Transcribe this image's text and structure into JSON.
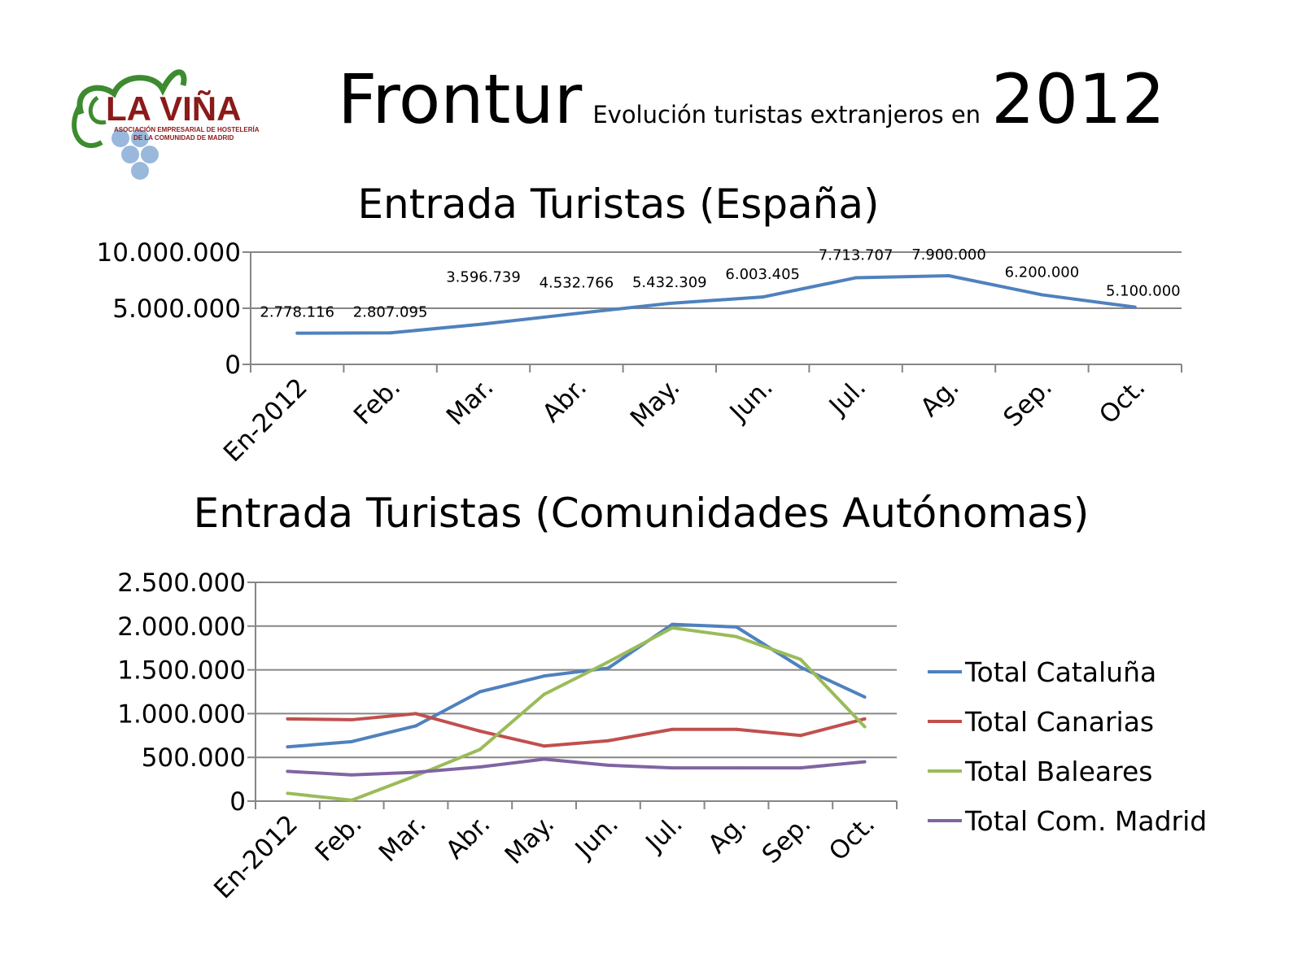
{
  "header": {
    "main": "Frontur",
    "sub": "Evolución turistas extranjeros en",
    "year": "2012"
  },
  "logo": {
    "name": "LA VIÑA",
    "line1": "ASOCIACIÓN EMPRESARIAL DE HOSTELERÍA",
    "line2": "DE LA COMUNIDAD DE MADRID",
    "icon": "grape-vine-icon",
    "colors": {
      "text": "#8b1a1a",
      "leaf": "#3d8b2f",
      "grapes": "#9ab8dc"
    }
  },
  "chart_data": [
    {
      "type": "line",
      "title": "Entrada Turistas (España)",
      "categories": [
        "En-2012",
        "Feb.",
        "Mar.",
        "Abr.",
        "May.",
        "Jun.",
        "Jul.",
        "Ag.",
        "Sep.",
        "Oct."
      ],
      "series": [
        {
          "values": [
            2778116,
            2807095,
            3596739,
            4532766,
            5432309,
            6003405,
            7713707,
            7900000,
            6200000,
            5100000
          ],
          "color": "#4f81bd"
        }
      ],
      "data_labels": [
        "2.778.116",
        "2.807.095",
        "3.596.739",
        "4.532.766",
        "5.432.309",
        "6.003.405",
        "7.713.707",
        "7.900.000",
        "6.200.000",
        "5.100.000"
      ],
      "ylim": [
        0,
        10000000
      ],
      "yticks": [
        0,
        5000000,
        10000000
      ],
      "ytick_labels": [
        "0",
        "5.000.000",
        "10.000.000"
      ],
      "grid": true,
      "legend": "none"
    },
    {
      "type": "line",
      "title": "Entrada Turistas (Comunidades Autónomas)",
      "categories": [
        "En-2012",
        "Feb.",
        "Mar.",
        "Abr.",
        "May.",
        "Jun.",
        "Jul.",
        "Ag.",
        "Sep.",
        "Oct."
      ],
      "series": [
        {
          "name": "Total Cataluña",
          "color": "#4f81bd",
          "values": [
            620000,
            680000,
            860000,
            1250000,
            1430000,
            1520000,
            2020000,
            1990000,
            1530000,
            1190000
          ]
        },
        {
          "name": "Total Canarias",
          "color": "#c0504d",
          "values": [
            940000,
            930000,
            1000000,
            800000,
            630000,
            690000,
            820000,
            820000,
            750000,
            940000
          ]
        },
        {
          "name": "Total Baleares",
          "color": "#9bbb59",
          "values": [
            90000,
            10000,
            290000,
            590000,
            1220000,
            1590000,
            1980000,
            1880000,
            1620000,
            850000
          ]
        },
        {
          "name": "Total Com. Madrid",
          "color": "#8064a2",
          "values": [
            340000,
            300000,
            330000,
            390000,
            480000,
            410000,
            380000,
            380000,
            380000,
            450000
          ]
        }
      ],
      "ylim": [
        0,
        2500000
      ],
      "yticks": [
        0,
        500000,
        1000000,
        1500000,
        2000000,
        2500000
      ],
      "ytick_labels": [
        "0",
        "500.000",
        "1.000.000",
        "1.500.000",
        "2.000.000",
        "2.500.000"
      ],
      "grid": true,
      "legend": "right"
    }
  ]
}
